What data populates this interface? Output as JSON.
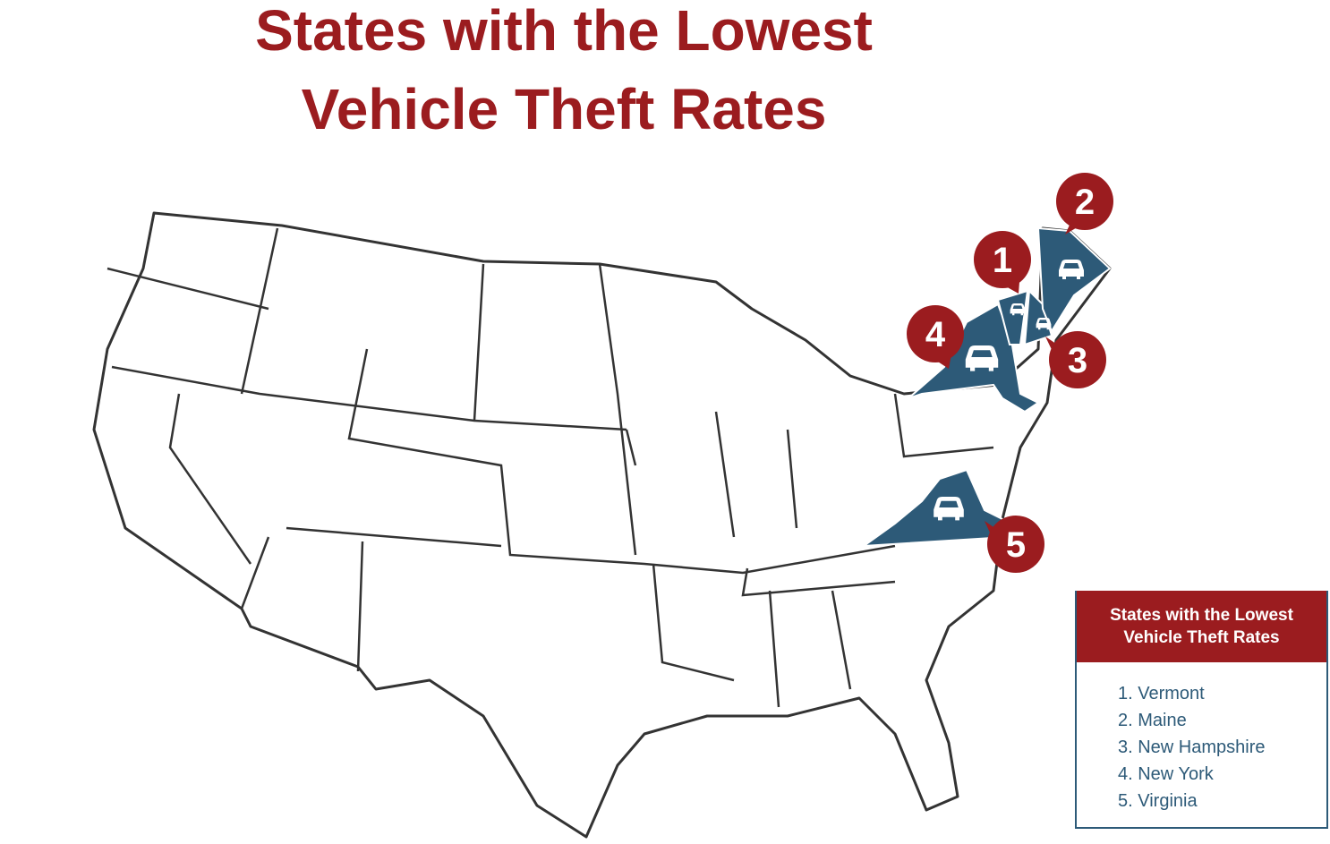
{
  "title": [
    "States with the Lowest",
    "Vehicle Theft Rates"
  ],
  "markers": [
    "1",
    "2",
    "3",
    "4",
    "5"
  ],
  "legend": {
    "title": [
      "States with the Lowest",
      "Vehicle Theft Rates"
    ],
    "items": [
      "1. Vermont",
      "2. Maine",
      "3. New Hampshire",
      "4. New York",
      "5. Virginia"
    ]
  }
}
